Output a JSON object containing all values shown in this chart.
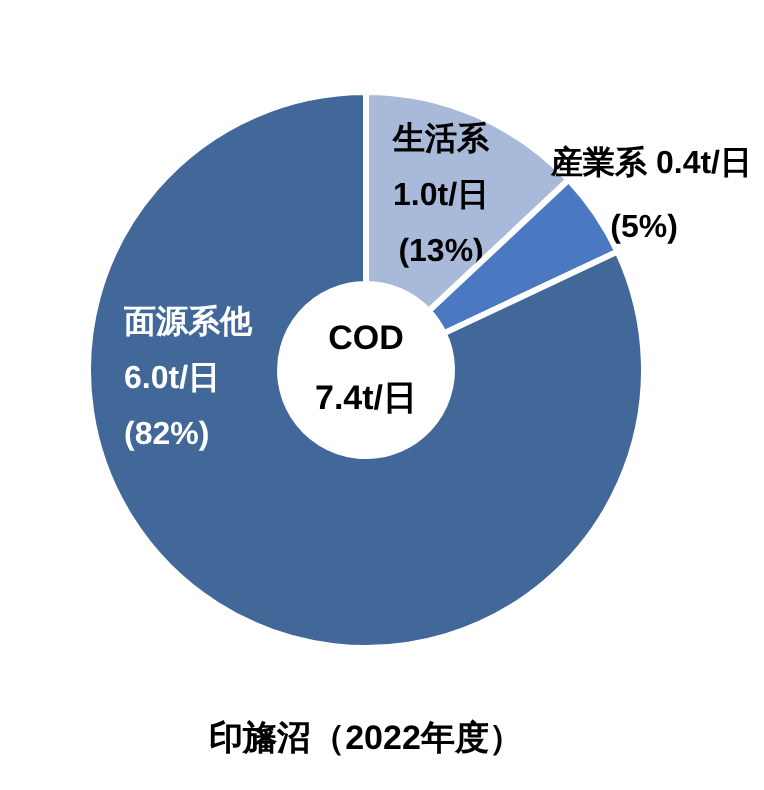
{
  "chart_data": {
    "type": "donut",
    "title": "印旛沼（2022年度）",
    "categories": [
      "生活系\n1.0t/日",
      "産業系 0.4t/日",
      "面源系他\n6.0t/日"
    ],
    "values": [
      13,
      5,
      82
    ],
    "value_labels": [
      "(13%)",
      "(5%)",
      "(82%)"
    ],
    "colors": [
      "#a9b9d9",
      "#4a79c2",
      "#416899"
    ],
    "annotations": [
      "COD",
      "7.4t/日"
    ]
  }
}
